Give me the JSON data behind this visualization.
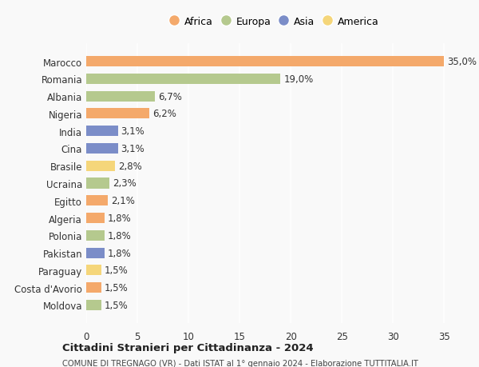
{
  "countries": [
    "Marocco",
    "Romania",
    "Albania",
    "Nigeria",
    "India",
    "Cina",
    "Brasile",
    "Ucraina",
    "Egitto",
    "Algeria",
    "Polonia",
    "Pakistan",
    "Paraguay",
    "Costa d'Avorio",
    "Moldova"
  ],
  "values": [
    35.0,
    19.0,
    6.7,
    6.2,
    3.1,
    3.1,
    2.8,
    2.3,
    2.1,
    1.8,
    1.8,
    1.8,
    1.5,
    1.5,
    1.5
  ],
  "labels": [
    "35,0%",
    "19,0%",
    "6,7%",
    "6,2%",
    "3,1%",
    "3,1%",
    "2,8%",
    "2,3%",
    "2,1%",
    "1,8%",
    "1,8%",
    "1,8%",
    "1,5%",
    "1,5%",
    "1,5%"
  ],
  "continents": [
    "Africa",
    "Europa",
    "Europa",
    "Africa",
    "Asia",
    "Asia",
    "America",
    "Europa",
    "Africa",
    "Africa",
    "Europa",
    "Asia",
    "America",
    "Africa",
    "Europa"
  ],
  "continent_colors": {
    "Africa": "#F4A96B",
    "Europa": "#B5C98E",
    "Asia": "#7B8DC8",
    "America": "#F5D67A"
  },
  "legend_order": [
    "Africa",
    "Europa",
    "Asia",
    "America"
  ],
  "title1": "Cittadini Stranieri per Cittadinanza - 2024",
  "title2": "COMUNE DI TREGNAGO (VR) - Dati ISTAT al 1° gennaio 2024 - Elaborazione TUTTITALIA.IT",
  "xlim": [
    0,
    37
  ],
  "xticks": [
    0,
    5,
    10,
    15,
    20,
    25,
    30,
    35
  ],
  "background_color": "#f9f9f9",
  "bar_height": 0.6,
  "label_fontsize": 8.5,
  "tick_fontsize": 8.5,
  "legend_fontsize": 9
}
